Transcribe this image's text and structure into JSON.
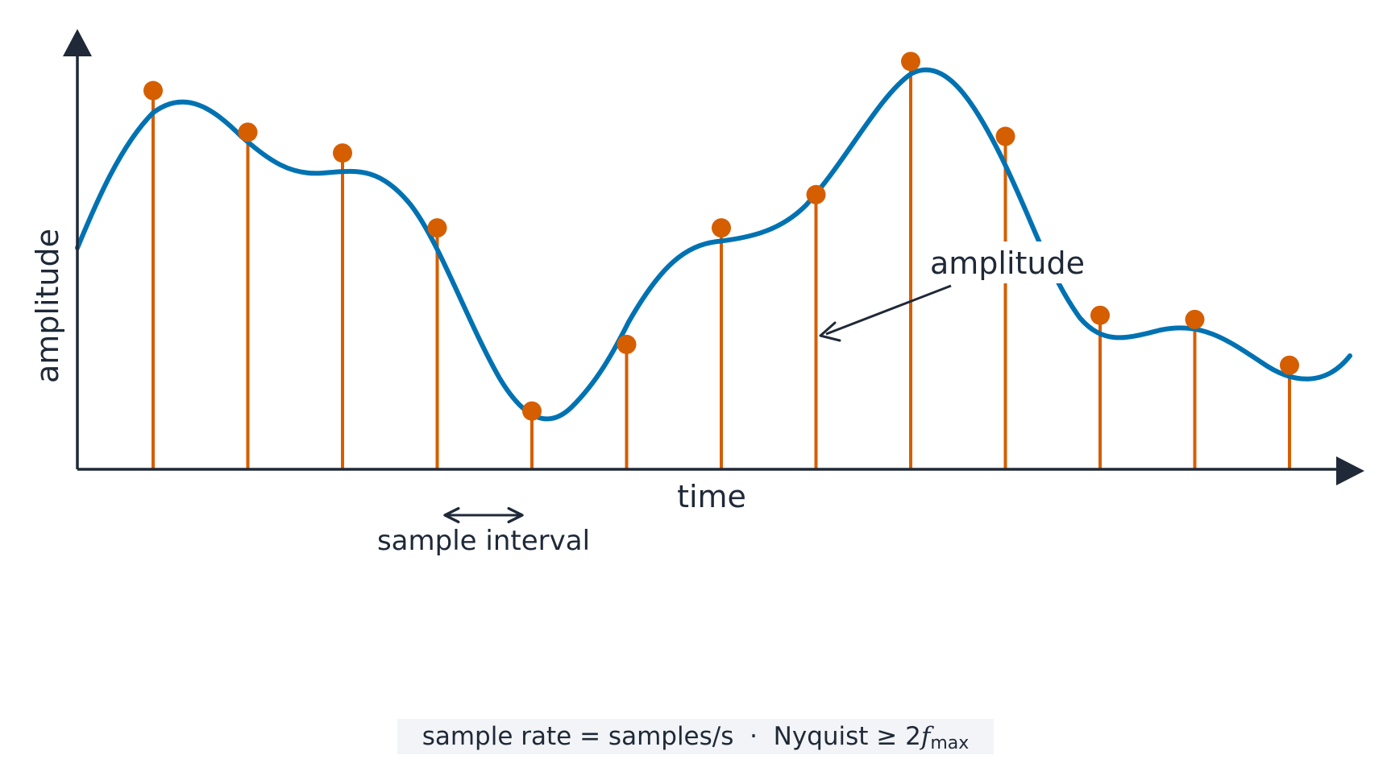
{
  "axes": {
    "y_label": "amplitude",
    "x_label": "time"
  },
  "annotations": {
    "amplitude_callout": "amplitude",
    "sample_interval": "sample interval"
  },
  "formula": {
    "left": "sample rate = samples/s",
    "separator": "·",
    "nyquist": "Nyquist",
    "relation": "≥ 2",
    "var": "f",
    "sub": "max"
  },
  "colors": {
    "axis": "#1f2937",
    "signal": "#0072b2",
    "samples": "#d55e00",
    "formula_bg": "#f2f4f7"
  },
  "samples": {
    "count": 13,
    "values": [
      0.91,
      0.81,
      0.76,
      0.58,
      0.14,
      0.3,
      0.58,
      0.66,
      0.98,
      0.8,
      0.37,
      0.36,
      0.25
    ]
  }
}
